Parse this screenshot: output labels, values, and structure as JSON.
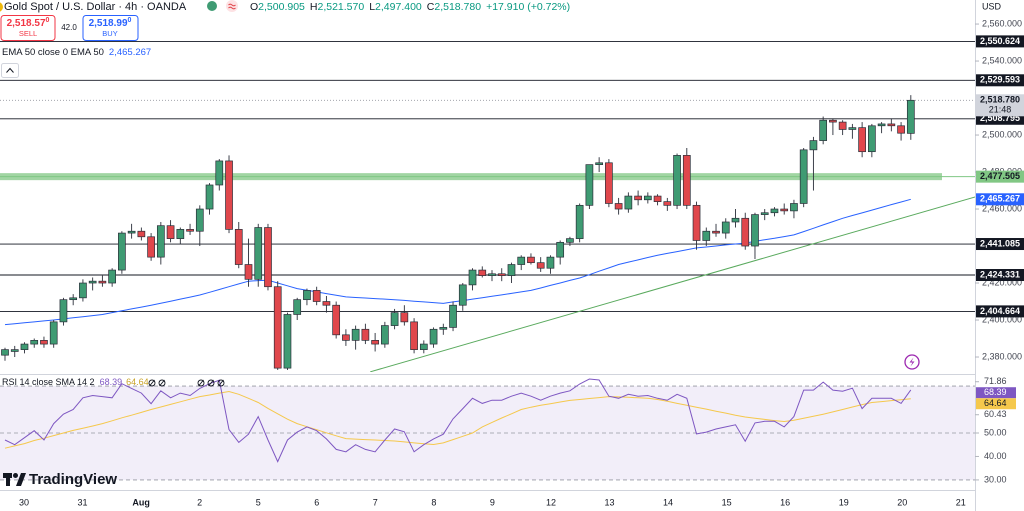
{
  "ui": {
    "currency": "USD",
    "ohlc": [
      {
        "key": "O",
        "value": "2,500.905"
      },
      {
        "key": "H",
        "value": "2,521.570"
      },
      {
        "key": "L",
        "value": "2,497.400"
      },
      {
        "key": "C",
        "value": "2,518.780"
      }
    ],
    "change": "+17.910 (+0.72%)",
    "sell": {
      "price": "2,518.57",
      "sup": "0",
      "label": "SELL"
    },
    "spread": "42.0",
    "buy": {
      "price": "2,518.99",
      "sup": "0",
      "label": "BUY"
    },
    "brand": "TradingView"
  },
  "chart_data": [
    {
      "type": "candlestick",
      "title": "Gold Spot / U.S. Dollar · 4h · OANDA",
      "up_color": "#3f9b73",
      "down_color": "#e0474c",
      "open": [
        2381,
        2383,
        2384,
        2387,
        2389,
        2387,
        2399,
        2411,
        2412,
        2420,
        2421,
        2420,
        2427,
        2447,
        2448,
        2445,
        2434,
        2451,
        2444,
        2449,
        2448,
        2460,
        2473,
        2486,
        2449,
        2430,
        2422,
        2450,
        2418,
        2374,
        2403,
        2411,
        2416,
        2410,
        2408,
        2392,
        2389,
        2395,
        2389,
        2387,
        2397,
        2404,
        2399,
        2384,
        2387,
        2395,
        2396,
        2408,
        2419,
        2427,
        2424,
        2425,
        2424,
        2430,
        2434,
        2431,
        2428,
        2434,
        2442,
        2444,
        2462,
        2484,
        2485,
        2463,
        2460,
        2467,
        2465,
        2467,
        2464,
        2462,
        2489,
        2462,
        2443,
        2448,
        2447,
        2453,
        2455,
        2440,
        2457,
        2458,
        2460,
        2459,
        2463,
        2492,
        2497,
        2508,
        2507,
        2503,
        2504,
        2491,
        2505,
        2506,
        2505,
        2500.905
      ],
      "high": [
        2385,
        2386,
        2388,
        2390,
        2391,
        2400,
        2412,
        2414,
        2422,
        2423,
        2424,
        2428,
        2448,
        2452,
        2450,
        2447,
        2453,
        2454,
        2450,
        2452,
        2462,
        2474,
        2487,
        2489,
        2453,
        2444,
        2452,
        2452,
        2421,
        2404,
        2412,
        2417,
        2418,
        2413,
        2410,
        2395,
        2397,
        2398,
        2393,
        2399,
        2406,
        2408,
        2401,
        2389,
        2396,
        2398,
        2410,
        2420,
        2428,
        2429,
        2427,
        2428,
        2431,
        2435,
        2436,
        2434,
        2435,
        2443,
        2445,
        2463,
        2484,
        2488,
        2487,
        2466,
        2469,
        2470,
        2469,
        2468,
        2466,
        2490,
        2493,
        2464,
        2450,
        2452,
        2455,
        2460,
        2458,
        2458,
        2460,
        2461,
        2463,
        2465,
        2493,
        2499,
        2510,
        2509,
        2508,
        2506,
        2507,
        2506,
        2507,
        2509,
        2507,
        2521.57
      ],
      "low": [
        2378,
        2380,
        2382,
        2385,
        2385,
        2385,
        2397,
        2408,
        2410,
        2416,
        2418,
        2418,
        2425,
        2444,
        2443,
        2432,
        2430,
        2442,
        2441,
        2446,
        2440,
        2457,
        2470,
        2447,
        2428,
        2418,
        2418,
        2416,
        2373,
        2373,
        2400,
        2408,
        2408,
        2404,
        2390,
        2386,
        2384,
        2387,
        2383,
        2385,
        2395,
        2397,
        2382,
        2382,
        2385,
        2392,
        2394,
        2405,
        2416,
        2423,
        2421,
        2421,
        2420,
        2427,
        2430,
        2426,
        2425,
        2430,
        2440,
        2442,
        2460,
        2480,
        2461,
        2457,
        2458,
        2462,
        2463,
        2462,
        2459,
        2460,
        2460,
        2438,
        2440,
        2445,
        2444,
        2450,
        2438,
        2433,
        2454,
        2456,
        2457,
        2455,
        2461,
        2470,
        2495,
        2500,
        2500,
        2498,
        2488,
        2488,
        2501,
        2502,
        2497,
        2497.4
      ],
      "close": [
        2384,
        2384,
        2387,
        2389,
        2387,
        2399,
        2411,
        2412,
        2420,
        2421,
        2420,
        2427,
        2447,
        2448,
        2445,
        2434,
        2451,
        2444,
        2449,
        2448,
        2460,
        2473,
        2486,
        2449,
        2430,
        2422,
        2450,
        2418,
        2374,
        2403,
        2411,
        2416,
        2410,
        2408,
        2392,
        2389,
        2395,
        2389,
        2387,
        2397,
        2404,
        2399,
        2384,
        2387,
        2395,
        2396,
        2408,
        2419,
        2427,
        2424,
        2425,
        2424,
        2430,
        2434,
        2431,
        2428,
        2434,
        2442,
        2444,
        2462,
        2484,
        2485,
        2463,
        2460,
        2467,
        2465,
        2467,
        2464,
        2462,
        2489,
        2462,
        2443,
        2448,
        2447,
        2453,
        2455,
        2440,
        2457,
        2458,
        2460,
        2459,
        2463,
        2492,
        2497,
        2508,
        2507,
        2503,
        2504,
        2491,
        2505,
        2506,
        2505,
        2501,
        2518.78
      ],
      "last_close_label": "2,518.780",
      "countdown": "21:48",
      "series": [
        {
          "name": "EMA 50 close 0 EMA 50",
          "color": "#2962ff",
          "last_value_label": "2,465.267",
          "values": [
            2397.5,
            2398.0,
            2398.5,
            2399.0,
            2399.5,
            2400.0,
            2400.6,
            2401.2,
            2401.8,
            2402.4,
            2403.0,
            2404.0,
            2405.0,
            2406.0,
            2407.0,
            2408.0,
            2409.1,
            2410.2,
            2411.3,
            2412.4,
            2413.5,
            2415.0,
            2416.5,
            2418.0,
            2419.5,
            2421.0,
            2421.3,
            2421.5,
            2420.0,
            2418.5,
            2417.0,
            2416.1,
            2415.2,
            2414.3,
            2413.4,
            2412.5,
            2412.2,
            2411.9,
            2411.6,
            2411.3,
            2411.0,
            2410.6,
            2410.2,
            2409.8,
            2409.4,
            2409.0,
            2409.8,
            2410.5,
            2411.3,
            2412.0,
            2412.8,
            2413.6,
            2414.4,
            2415.2,
            2416.0,
            2417.3,
            2418.7,
            2420.0,
            2421.4,
            2422.7,
            2424.5,
            2426.4,
            2428.2,
            2430.0,
            2431.3,
            2432.5,
            2433.8,
            2435.0,
            2436.0,
            2437.0,
            2438.0,
            2439.0,
            2439.5,
            2440.0,
            2440.6,
            2441.1,
            2441.6,
            2442.5,
            2443.4,
            2444.2,
            2445.1,
            2446.0,
            2447.8,
            2449.6,
            2451.4,
            2453.2,
            2455.0,
            2456.5,
            2457.9,
            2459.4,
            2460.9,
            2462.4,
            2463.8,
            2465.267
          ]
        }
      ],
      "levels": [
        {
          "value": 2550.624,
          "label": "2,550.624",
          "color": "#131722"
        },
        {
          "value": 2529.593,
          "label": "2,529.593",
          "color": "#131722"
        },
        {
          "value": 2508.795,
          "label": "2,508.795",
          "color": "#131722"
        },
        {
          "value": 2477.505,
          "label": "2,477.505",
          "color": "#81c784"
        },
        {
          "value": 2441.085,
          "label": "2,441.085",
          "color": "#131722"
        },
        {
          "value": 2424.331,
          "label": "2,424.331",
          "color": "#131722"
        },
        {
          "value": 2404.664,
          "label": "2,404.664",
          "color": "#131722"
        }
      ],
      "trendline": {
        "x": [
          37.5,
          99.6
        ],
        "values": [
          2372,
          2466.5
        ],
        "color": "#5aaa5e"
      },
      "ylim": [
        2371.9,
        2573.0
      ],
      "yticks": [
        {
          "value": 2560,
          "label": "2,560.000"
        },
        {
          "value": 2540,
          "label": "2,540.000"
        },
        {
          "value": 2500,
          "label": "2,500.000"
        },
        {
          "value": 2480,
          "label": "2,480.000"
        },
        {
          "value": 2460,
          "label": "2,460.000"
        },
        {
          "value": 2420,
          "label": "2,420.000"
        },
        {
          "value": 2400,
          "label": "2,400.000"
        },
        {
          "value": 2380,
          "label": "2,380.000"
        }
      ],
      "x_labels": [
        "30",
        "31",
        "Aug",
        "2",
        "5",
        "6",
        "7",
        "8",
        "9",
        "12",
        "13",
        "14",
        "15",
        "16",
        "19",
        "20",
        "21"
      ]
    },
    {
      "type": "line",
      "title": "RSI 14 close SMA 14 2",
      "series": [
        {
          "name": "RSI",
          "color": "#7e57c2",
          "values": [
            47,
            45,
            48,
            51,
            47,
            54,
            58,
            60,
            65,
            66,
            65.5,
            65,
            71,
            69,
            67,
            62.5,
            68,
            65,
            67,
            66,
            69,
            71,
            72.5,
            51.5,
            46,
            49.5,
            57,
            47,
            37.8,
            47,
            50.4,
            52.6,
            51,
            47.5,
            43,
            42,
            45,
            43,
            42,
            47,
            51.7,
            50.5,
            42,
            45,
            47.5,
            49.5,
            56,
            60.4,
            64.8,
            62.6,
            64,
            64,
            65.7,
            67,
            65.7,
            64,
            65.7,
            67,
            68,
            70.9,
            73,
            72.6,
            65.7,
            64.8,
            66.5,
            65.7,
            66,
            64.8,
            64,
            66.5,
            64.8,
            49.6,
            50.4,
            51.7,
            52.6,
            53.5,
            46.5,
            54.3,
            55,
            55,
            52.6,
            57,
            68.3,
            68.3,
            71.7,
            68.3,
            67.8,
            69.1,
            60.4,
            64.8,
            64.8,
            64.8,
            62.6,
            68.39
          ]
        },
        {
          "name": "SMA",
          "color": "#f5c84c",
          "values": [
            43.5,
            44.5,
            45.5,
            46.8,
            47.8,
            48.9,
            50,
            51.1,
            52,
            53,
            54,
            55.2,
            56.5,
            57.6,
            58.8,
            60,
            61.1,
            62.2,
            63.3,
            64.4,
            65.5,
            66.2,
            67,
            67.7,
            66.5,
            64.8,
            63,
            60.5,
            58.2,
            55.9,
            54,
            52.7,
            51.4,
            50.1,
            48.8,
            47.6,
            47.4,
            47.2,
            47,
            46.8,
            46.6,
            46.2,
            45.8,
            45.4,
            45.1,
            45.8,
            47.2,
            48.6,
            50,
            52.6,
            54.5,
            56.4,
            58.2,
            60,
            61,
            61.8,
            62.5,
            63.2,
            63.9,
            64.3,
            64.7,
            65.1,
            65.5,
            65.4,
            65.2,
            65,
            64.8,
            64.3,
            63.5,
            62.6,
            61.8,
            61,
            60.2,
            59.3,
            58.5,
            57.6,
            56.8,
            56.3,
            55.8,
            55.3,
            54.9,
            55.4,
            56.3,
            57.1,
            58,
            59,
            60,
            61.1,
            62.1,
            63,
            63.4,
            63.8,
            64.2,
            64.64
          ]
        }
      ],
      "hlines": [
        70,
        50,
        30
      ],
      "ylim": [
        25.7,
        74.3
      ],
      "yticks": [
        71.86,
        60.43,
        {
          "value": 50,
          "label": "50.00"
        },
        {
          "value": 40,
          "label": "40.00"
        },
        {
          "value": 30,
          "label": "30.00"
        }
      ]
    }
  ]
}
